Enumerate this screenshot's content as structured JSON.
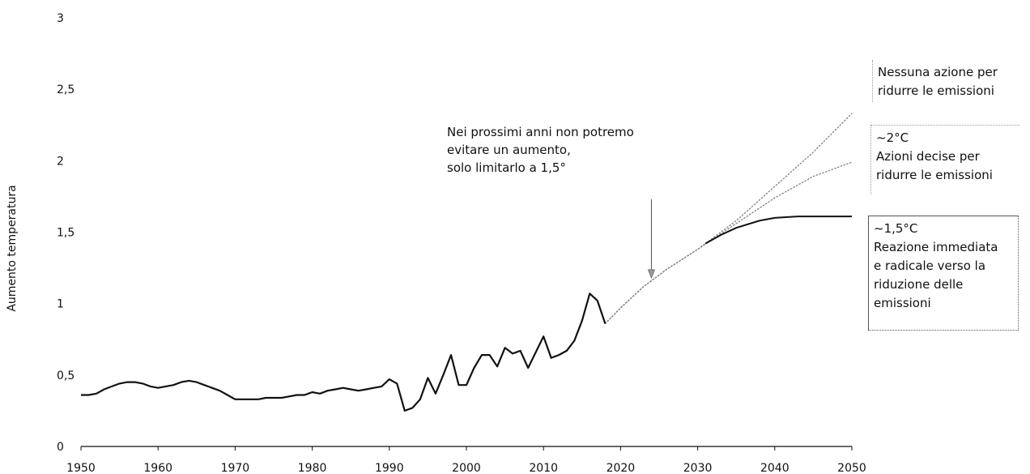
{
  "chart_data": {
    "type": "line",
    "ylabel": "Aumento temperatura",
    "xlim": [
      1950,
      2050
    ],
    "ylim": [
      0,
      3
    ],
    "x_ticks": [
      "1950",
      "1960",
      "1970",
      "1980",
      "1990",
      "2000",
      "2010",
      "2020",
      "2030",
      "2040",
      "2050"
    ],
    "y_ticks": [
      "0",
      "0,5",
      "1",
      "1,5",
      "2",
      "2,5",
      "3"
    ],
    "grid": false,
    "series": [
      {
        "style": "solid",
        "color": "#111111",
        "x": [
          1950,
          1951,
          1952,
          1953,
          1954,
          1955,
          1956,
          1957,
          1958,
          1959,
          1960,
          1961,
          1962,
          1963,
          1964,
          1965,
          1966,
          1967,
          1968,
          1969,
          1970,
          1971,
          1972,
          1973,
          1974,
          1975,
          1976,
          1977,
          1978,
          1979,
          1980,
          1981,
          1982,
          1983,
          1984,
          1985,
          1986,
          1987,
          1988,
          1989,
          1990,
          1991,
          1992,
          1993,
          1994,
          1995,
          1996,
          1997,
          1998,
          1999,
          2000,
          2001,
          2002,
          2003,
          2004,
          2005,
          2006,
          2007,
          2008,
          2009,
          2010,
          2011,
          2012,
          2013,
          2014,
          2015,
          2016,
          2017,
          2018
        ],
        "y": [
          0.36,
          0.36,
          0.37,
          0.4,
          0.42,
          0.44,
          0.45,
          0.45,
          0.44,
          0.42,
          0.41,
          0.42,
          0.43,
          0.45,
          0.46,
          0.45,
          0.43,
          0.41,
          0.39,
          0.36,
          0.33,
          0.33,
          0.33,
          0.33,
          0.34,
          0.34,
          0.34,
          0.35,
          0.36,
          0.36,
          0.38,
          0.37,
          0.39,
          0.4,
          0.41,
          0.4,
          0.39,
          0.4,
          0.41,
          0.42,
          0.47,
          0.44,
          0.25,
          0.27,
          0.33,
          0.48,
          0.37,
          0.5,
          0.64,
          0.43,
          0.43,
          0.55,
          0.64,
          0.64,
          0.56,
          0.69,
          0.65,
          0.67,
          0.55,
          0.66,
          0.77,
          0.62,
          0.64,
          0.67,
          0.74,
          0.88,
          1.07,
          1.02,
          0.86
        ]
      },
      {
        "name": "Nessuna azione per ridurre le emissioni",
        "style": "dotted",
        "color": "#777777",
        "x": [
          2018,
          2020,
          2023,
          2026,
          2030,
          2035,
          2040,
          2045,
          2050
        ],
        "y": [
          0.86,
          0.97,
          1.12,
          1.24,
          1.38,
          1.58,
          1.82,
          2.06,
          2.33
        ]
      },
      {
        "name": "~2°C Azioni decise per ridurre le emissioni",
        "style": "dotted",
        "color": "#777777",
        "x": [
          2018,
          2020,
          2023,
          2026,
          2030,
          2035,
          2040,
          2045,
          2050
        ],
        "y": [
          0.86,
          0.97,
          1.12,
          1.24,
          1.38,
          1.56,
          1.74,
          1.89,
          1.99
        ]
      },
      {
        "name": "~1,5°C Reazione immediata e radicale verso la riduzione delle emissioni",
        "style": "dotted-then-solid",
        "solid_from": 2031,
        "color": "#111111",
        "x": [
          2018,
          2020,
          2023,
          2026,
          2030,
          2031,
          2033,
          2035,
          2038,
          2040,
          2043,
          2045,
          2050
        ],
        "y": [
          0.86,
          0.97,
          1.12,
          1.24,
          1.38,
          1.42,
          1.48,
          1.53,
          1.58,
          1.6,
          1.61,
          1.61,
          1.61
        ]
      }
    ],
    "annotations": [
      {
        "lines": [
          "Nei prossimi anni non potremo",
          "evitare un aumento,",
          "solo limitarlo a 1,5°"
        ],
        "arrow_x": 2024,
        "arrow_from_y": 1.73,
        "arrow_to_y": 1.18
      }
    ]
  },
  "legend_boxes": {
    "none": [
      "Nessuna azione per",
      "ridurre le emissioni"
    ],
    "two": [
      "~2°C",
      "Azioni decise per",
      "ridurre le emissioni"
    ],
    "one_five": [
      "~1,5°C",
      "Reazione immediata",
      "e radicale verso la",
      "riduzione delle",
      "emissioni"
    ]
  }
}
